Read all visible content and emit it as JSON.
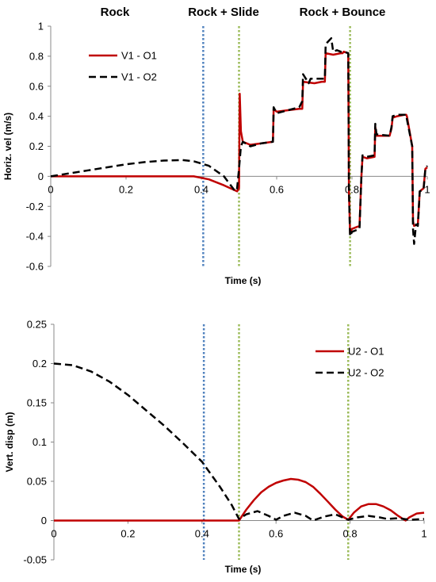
{
  "phase_labels": [
    "Rock",
    "Rock + Slide",
    "Rock + Bounce"
  ],
  "chart_data": [
    {
      "type": "line",
      "xlabel": "Time (s)",
      "ylabel": "Horiz. vel (m/s)",
      "xlim": [
        0,
        1
      ],
      "ylim": [
        -0.6,
        1
      ],
      "xticks": [
        "0",
        "0.2",
        "0.4",
        "0.6",
        "0.8",
        "1"
      ],
      "yticks": [
        "-0.6",
        "-0.4",
        "-0.2",
        "0",
        "0.2",
        "0.4",
        "0.6",
        "0.8",
        "1"
      ],
      "grid": false,
      "legend_position": "top-left",
      "vlines": [
        {
          "x": 0.405,
          "color": "#4f81bd",
          "style": "dotted"
        },
        {
          "x": 0.5,
          "color": "#9bbb59",
          "style": "dotted"
        },
        {
          "x": 0.795,
          "color": "#9bbb59",
          "style": "dotted"
        }
      ],
      "series": [
        {
          "name": "V1 - O1",
          "color": "#c00000",
          "style": "solid",
          "x": [
            0,
            0.1,
            0.2,
            0.3,
            0.38,
            0.42,
            0.46,
            0.495,
            0.5,
            0.502,
            0.505,
            0.51,
            0.53,
            0.56,
            0.59,
            0.592,
            0.6,
            0.63,
            0.66,
            0.668,
            0.67,
            0.7,
            0.72,
            0.728,
            0.73,
            0.75,
            0.77,
            0.775,
            0.778,
            0.79,
            0.792,
            0.795,
            0.8,
            0.82,
            0.825,
            0.828,
            0.84,
            0.86,
            0.862,
            0.865,
            0.9,
            0.905,
            0.908,
            0.92,
            0.94,
            0.944,
            0.946,
            0.96,
            0.962,
            0.965,
            0.975,
            0.98,
            0.99,
            0.995,
            1.0
          ],
          "y": [
            0,
            0,
            0,
            0,
            0,
            -0.02,
            -0.06,
            -0.1,
            -0.08,
            0.55,
            0.3,
            0.23,
            0.21,
            0.22,
            0.23,
            0.45,
            0.43,
            0.44,
            0.45,
            0.45,
            0.63,
            0.62,
            0.63,
            0.63,
            0.82,
            0.81,
            0.82,
            0.82,
            0.83,
            0.82,
            -0.1,
            -0.38,
            -0.35,
            -0.33,
            0.0,
            0.13,
            0.12,
            0.13,
            0.33,
            0.27,
            0.27,
            0.32,
            0.39,
            0.4,
            0.41,
            0.41,
            0.4,
            0.2,
            -0.3,
            -0.33,
            -0.32,
            -0.1,
            -0.08,
            0.05,
            0.06
          ]
        },
        {
          "name": "V1 - O2",
          "color": "#000000",
          "style": "dashed",
          "x": [
            0,
            0.05,
            0.1,
            0.15,
            0.2,
            0.25,
            0.3,
            0.35,
            0.38,
            0.42,
            0.46,
            0.49,
            0.495,
            0.5,
            0.505,
            0.51,
            0.53,
            0.56,
            0.59,
            0.592,
            0.6,
            0.63,
            0.66,
            0.668,
            0.67,
            0.685,
            0.69,
            0.7,
            0.72,
            0.728,
            0.73,
            0.745,
            0.75,
            0.76,
            0.77,
            0.775,
            0.778,
            0.79,
            0.792,
            0.795,
            0.8,
            0.82,
            0.825,
            0.828,
            0.84,
            0.86,
            0.862,
            0.865,
            0.9,
            0.905,
            0.908,
            0.92,
            0.94,
            0.944,
            0.946,
            0.96,
            0.962,
            0.965,
            0.97,
            0.975,
            0.98,
            0.99,
            0.995,
            1.0
          ],
          "y": [
            0,
            0.02,
            0.04,
            0.06,
            0.08,
            0.095,
            0.105,
            0.108,
            0.1,
            0.07,
            0.0,
            -0.1,
            -0.08,
            0.05,
            0.2,
            0.23,
            0.2,
            0.22,
            0.23,
            0.46,
            0.42,
            0.44,
            0.46,
            0.5,
            0.68,
            0.62,
            0.65,
            0.65,
            0.65,
            0.65,
            0.88,
            0.92,
            0.83,
            0.84,
            0.83,
            0.83,
            0.83,
            0.82,
            -0.1,
            -0.4,
            -0.37,
            -0.35,
            0.0,
            0.14,
            0.13,
            0.14,
            0.35,
            0.28,
            0.27,
            0.33,
            0.4,
            0.41,
            0.41,
            0.41,
            0.38,
            0.2,
            -0.35,
            -0.45,
            -0.32,
            -0.33,
            -0.1,
            -0.09,
            0.05,
            0.07
          ]
        }
      ]
    },
    {
      "type": "line",
      "xlabel": "Time (s)",
      "ylabel": "Vert. disp (m)",
      "xlim": [
        0,
        1
      ],
      "ylim": [
        -0.05,
        0.25
      ],
      "xticks": [
        "0",
        "0.2",
        "0.4",
        "0.6",
        "0.8",
        "1"
      ],
      "yticks": [
        "-0.05",
        "0",
        "0.05",
        "0.1",
        "0.15",
        "0.2",
        "0.25"
      ],
      "grid": false,
      "legend_position": "top-right",
      "vlines": [
        {
          "x": 0.405,
          "color": "#4f81bd",
          "style": "dotted"
        },
        {
          "x": 0.5,
          "color": "#9bbb59",
          "style": "dotted"
        },
        {
          "x": 0.795,
          "color": "#9bbb59",
          "style": "dotted"
        }
      ],
      "series": [
        {
          "name": "U2 - O1",
          "color": "#c00000",
          "style": "solid",
          "x": [
            0,
            0.1,
            0.2,
            0.3,
            0.4,
            0.45,
            0.49,
            0.5,
            0.52,
            0.54,
            0.56,
            0.58,
            0.6,
            0.62,
            0.64,
            0.66,
            0.68,
            0.7,
            0.72,
            0.74,
            0.76,
            0.78,
            0.795,
            0.81,
            0.83,
            0.85,
            0.87,
            0.89,
            0.91,
            0.93,
            0.95,
            0.96,
            0.98,
            1.0
          ],
          "y": [
            0,
            0,
            0,
            0,
            0,
            0,
            0,
            0,
            0.014,
            0.026,
            0.036,
            0.043,
            0.048,
            0.051,
            0.053,
            0.052,
            0.049,
            0.043,
            0.034,
            0.024,
            0.014,
            0.005,
            0.001,
            0.01,
            0.018,
            0.021,
            0.021,
            0.018,
            0.013,
            0.006,
            0.0,
            0.004,
            0.009,
            0.01
          ]
        },
        {
          "name": "U2 - O2",
          "color": "#000000",
          "style": "dashed",
          "x": [
            0,
            0.05,
            0.1,
            0.15,
            0.2,
            0.25,
            0.3,
            0.35,
            0.4,
            0.45,
            0.48,
            0.5,
            0.52,
            0.55,
            0.58,
            0.6,
            0.62,
            0.65,
            0.68,
            0.7,
            0.73,
            0.76,
            0.795,
            0.82,
            0.85,
            0.88,
            0.9,
            0.93,
            0.96,
            1.0
          ],
          "y": [
            0.2,
            0.198,
            0.19,
            0.177,
            0.16,
            0.14,
            0.12,
            0.098,
            0.075,
            0.042,
            0.02,
            0.002,
            0.008,
            0.012,
            0.006,
            0.001,
            0.006,
            0.01,
            0.006,
            0.0,
            0.005,
            0.008,
            0.001,
            0.004,
            0.006,
            0.004,
            0.002,
            0.003,
            0.001,
            0.002
          ]
        }
      ]
    }
  ]
}
